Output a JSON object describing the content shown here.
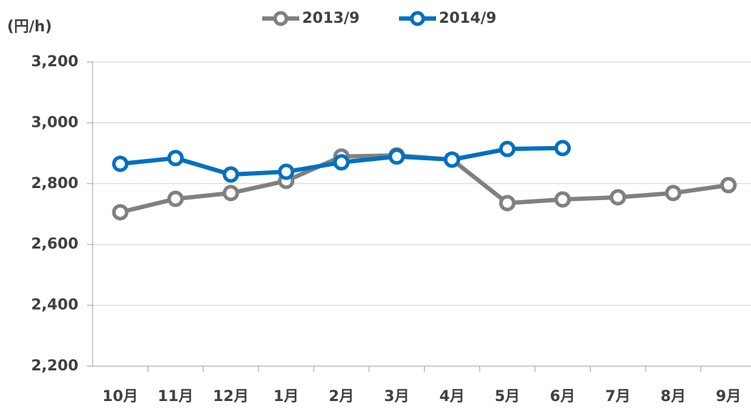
{
  "chart_data": {
    "type": "line",
    "y_axis_label": "(円/h)",
    "categories": [
      "10月",
      "11月",
      "12月",
      "1月",
      "2月",
      "3月",
      "4月",
      "5月",
      "6月",
      "7月",
      "8月",
      "9月"
    ],
    "series": [
      {
        "name": "2013/9",
        "color": "#808080",
        "values": [
          2706,
          2750,
          2769,
          2809,
          2889,
          2893,
          2879,
          2736,
          2748,
          2755,
          2769,
          2795
        ]
      },
      {
        "name": "2014/9",
        "color": "#0070c0",
        "values": [
          2865,
          2884,
          2830,
          2839,
          2870,
          2889,
          2879,
          2914,
          2917,
          null,
          null,
          null
        ]
      }
    ],
    "ylim": [
      2200,
      3200
    ],
    "yticks": [
      {
        "value": 2200,
        "label": "2,200"
      },
      {
        "value": 2400,
        "label": "2,400"
      },
      {
        "value": 2600,
        "label": "2,600"
      },
      {
        "value": 2800,
        "label": "2,800"
      },
      {
        "value": 3000,
        "label": "3,000"
      },
      {
        "value": 3200,
        "label": "3,200"
      }
    ],
    "grid": true,
    "legend": "top"
  }
}
